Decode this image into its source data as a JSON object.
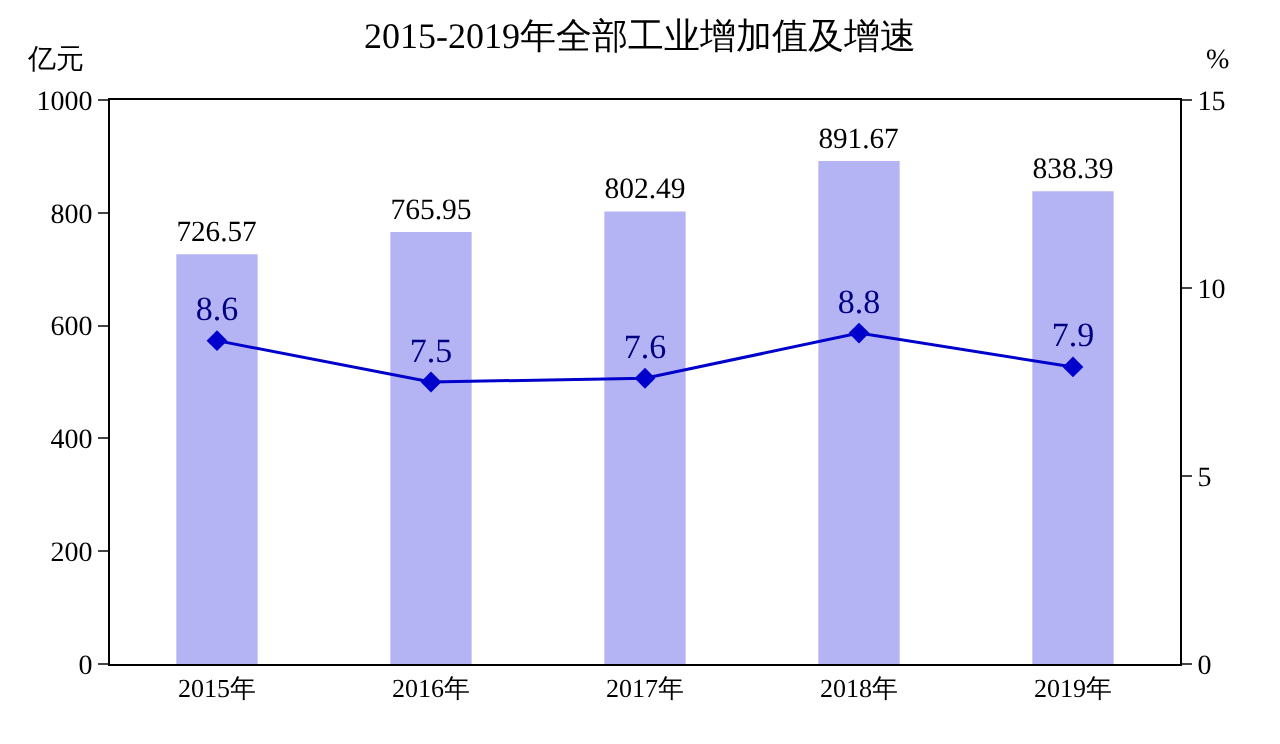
{
  "chart_data": {
    "type": "bar",
    "title": "2015-2019年全部工业增加值及增速",
    "ylabel": "亿元",
    "y2label": "%",
    "categories": [
      "2015年",
      "2016年",
      "2017年",
      "2018年",
      "2019年"
    ],
    "series": [
      {
        "color": "#b4b4f4",
        "values": [
          726.57,
          765.95,
          802.49,
          891.67,
          838.39
        ]
      },
      {
        "type": "line",
        "axis": "y2",
        "color": "#0000cc",
        "values": [
          8.6,
          7.5,
          7.6,
          8.8,
          7.9
        ]
      }
    ],
    "ylim": [
      0,
      1000
    ],
    "yticks": [
      0,
      200,
      400,
      600,
      800,
      1000
    ],
    "y2lim": [
      0,
      15
    ],
    "y2ticks": [
      0,
      5,
      10,
      15
    ],
    "data_labels": true,
    "marker": "diamond",
    "line_style": "solid"
  }
}
